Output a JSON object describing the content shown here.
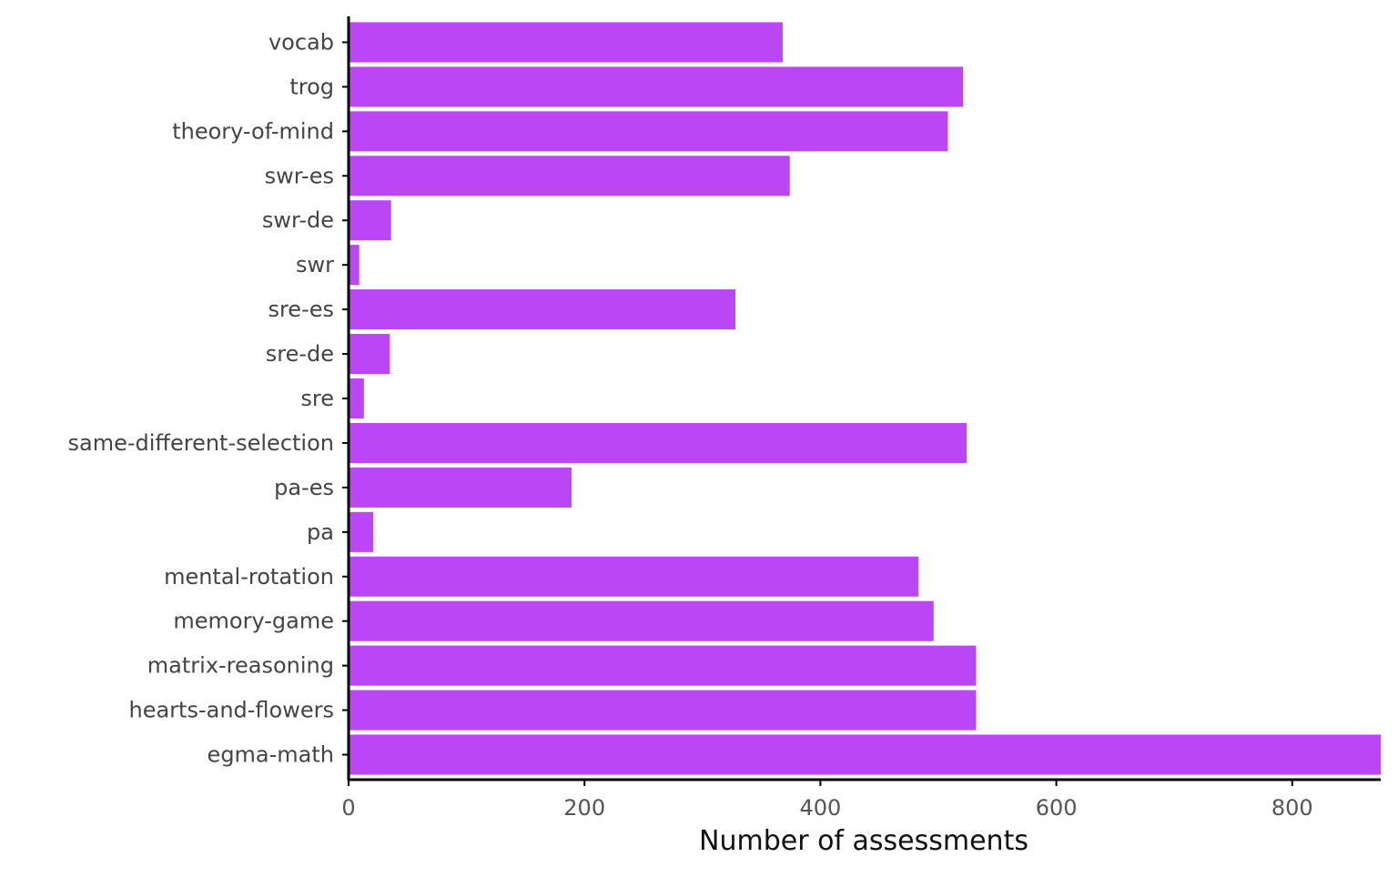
{
  "chart_data": {
    "type": "bar",
    "orientation": "horizontal",
    "categories": [
      "vocab",
      "trog",
      "theory-of-mind",
      "swr-es",
      "swr-de",
      "swr",
      "sre-es",
      "sre-de",
      "sre",
      "same-different-selection",
      "pa-es",
      "pa",
      "mental-rotation",
      "memory-game",
      "matrix-reasoning",
      "hearts-and-flowers",
      "egma-math"
    ],
    "values": [
      368,
      521,
      508,
      374,
      36,
      9,
      328,
      35,
      13,
      524,
      189,
      21,
      483,
      496,
      532,
      532,
      875
    ],
    "xlabel": "Number of assessments",
    "ylabel": "",
    "xlim": [
      0,
      875
    ],
    "xticks": [
      0,
      200,
      400,
      600,
      800
    ],
    "bar_color": "#BB46F6",
    "axis_color": "#000000",
    "grid": false
  }
}
